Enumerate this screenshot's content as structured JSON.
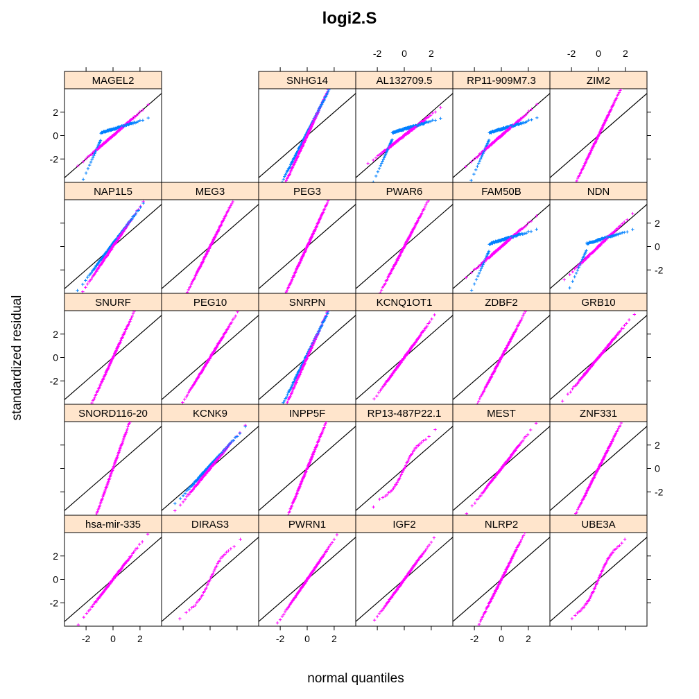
{
  "chart_data": {
    "type": "scatter",
    "title": "logi2.S",
    "xlabel": "normal quantiles",
    "ylabel": "standardized residual",
    "xlim": [
      -3.6,
      3.6
    ],
    "ylim": [
      -4,
      4
    ],
    "ticks": [
      -2,
      0,
      2
    ],
    "tick_labels": [
      "-2",
      "0",
      "2"
    ],
    "grid": false,
    "reference_line": {
      "slope": 1,
      "intercept": 0
    },
    "layout": {
      "columns": 6,
      "rows": 5
    },
    "colors": {
      "strip_background": "#ffe5cc",
      "series_a": "#0080ff",
      "series_b": "#ff00ff",
      "line": "#000000"
    },
    "series_names": [
      "series_a",
      "series_b"
    ],
    "panels": [
      {
        "label": "MAGEL2",
        "slope": 1.0,
        "n": 110,
        "pattern": "split"
      },
      {
        "label": "",
        "slope": 0,
        "n": 0,
        "pattern": "empty"
      },
      {
        "label": "SNHG14",
        "slope": 2.5,
        "n": 140,
        "pattern": "split-steep"
      },
      {
        "label": "AL132709.5",
        "slope": 0.9,
        "n": 140,
        "pattern": "split"
      },
      {
        "label": "RP11-909M7.3",
        "slope": 1.0,
        "n": 120,
        "pattern": "split"
      },
      {
        "label": "ZIM2",
        "slope": 2.4,
        "n": 120,
        "pattern": "steep"
      },
      {
        "label": "NAP1L5",
        "slope": 1.7,
        "n": 120,
        "pattern": "split-steep"
      },
      {
        "label": "MEG3",
        "slope": 2.3,
        "n": 120,
        "pattern": "steep"
      },
      {
        "label": "PEG3",
        "slope": 2.5,
        "n": 140,
        "pattern": "steep"
      },
      {
        "label": "PWAR6",
        "slope": 2.2,
        "n": 120,
        "pattern": "steep"
      },
      {
        "label": "FAM50B",
        "slope": 1.0,
        "n": 110,
        "pattern": "split"
      },
      {
        "label": "NDN",
        "slope": 1.1,
        "n": 90,
        "pattern": "split"
      },
      {
        "label": "SNURF",
        "slope": 2.5,
        "n": 110,
        "pattern": "steep"
      },
      {
        "label": "PEG10",
        "slope": 1.9,
        "n": 120,
        "pattern": "steep"
      },
      {
        "label": "SNRPN",
        "slope": 2.6,
        "n": 120,
        "pattern": "split-steep"
      },
      {
        "label": "KCNQ1OT1",
        "slope": 1.6,
        "n": 120,
        "pattern": "steep"
      },
      {
        "label": "ZDBF2",
        "slope": 2.2,
        "n": 120,
        "pattern": "steep"
      },
      {
        "label": "GRB10",
        "slope": 1.4,
        "n": 130,
        "pattern": "steep"
      },
      {
        "label": "SNORD116-20",
        "slope": 3.2,
        "n": 100,
        "pattern": "steep"
      },
      {
        "label": "KCNK9",
        "slope": 1.4,
        "n": 110,
        "pattern": "split-steep"
      },
      {
        "label": "INPP5F",
        "slope": 2.8,
        "n": 120,
        "pattern": "steep"
      },
      {
        "label": "RP13-487P22.1",
        "slope": 1.6,
        "n": 45,
        "pattern": "sparse"
      },
      {
        "label": "MEST",
        "slope": 1.5,
        "n": 100,
        "pattern": "steep"
      },
      {
        "label": "ZNF331",
        "slope": 2.3,
        "n": 120,
        "pattern": "steep"
      },
      {
        "label": "hsa-mir-335",
        "slope": 1.5,
        "n": 100,
        "pattern": "steep"
      },
      {
        "label": "DIRAS3",
        "slope": 1.7,
        "n": 40,
        "pattern": "sparse"
      },
      {
        "label": "PWRN1",
        "slope": 1.7,
        "n": 110,
        "pattern": "steep"
      },
      {
        "label": "IGF2",
        "slope": 1.6,
        "n": 110,
        "pattern": "steep"
      },
      {
        "label": "NLRP2",
        "slope": 2.3,
        "n": 110,
        "pattern": "steep"
      },
      {
        "label": "UBE3A",
        "slope": 1.9,
        "n": 60,
        "pattern": "sparse"
      }
    ]
  }
}
